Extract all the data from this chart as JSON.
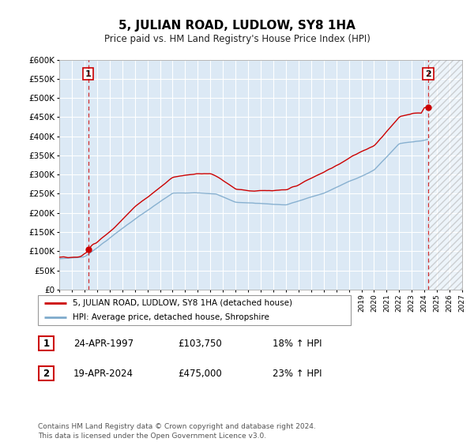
{
  "title": "5, JULIAN ROAD, LUDLOW, SY8 1HA",
  "subtitle": "Price paid vs. HM Land Registry's House Price Index (HPI)",
  "legend_line1": "5, JULIAN ROAD, LUDLOW, SY8 1HA (detached house)",
  "legend_line2": "HPI: Average price, detached house, Shropshire",
  "point1_date": "24-APR-1997",
  "point1_price": "£103,750",
  "point1_hpi": "18% ↑ HPI",
  "point1_year": 1997.31,
  "point1_value": 103750,
  "point2_date": "19-APR-2024",
  "point2_price": "£475,000",
  "point2_hpi": "23% ↑ HPI",
  "point2_year": 2024.3,
  "point2_value": 475000,
  "hpi_line_color": "#7eaacc",
  "price_line_color": "#cc0000",
  "background_color": "#dce9f5",
  "grid_color": "#ffffff",
  "footer_text": "Contains HM Land Registry data © Crown copyright and database right 2024.\nThis data is licensed under the Open Government Licence v3.0.",
  "xmin": 1995,
  "xmax": 2027,
  "ymin": 0,
  "ymax": 600000,
  "hatch_start": 2024.3
}
